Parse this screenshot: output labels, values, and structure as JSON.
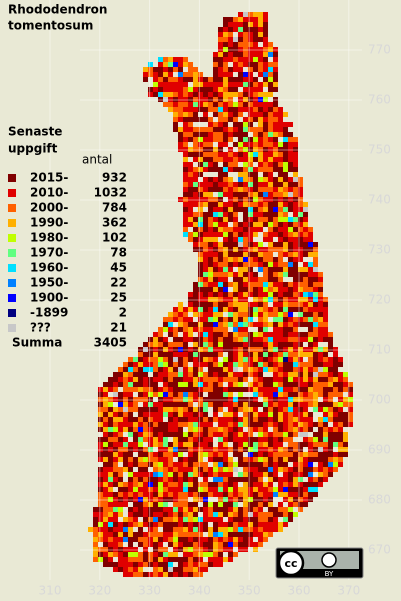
{
  "title": [
    "Rhododendron",
    "tomentosum"
  ],
  "legend": {
    "title": [
      "Senaste",
      "uppgift"
    ],
    "count_header": "antal",
    "items": [
      {
        "label": "2015-",
        "count": 932,
        "color": "#800000"
      },
      {
        "label": "2010-",
        "count": 1032,
        "color": "#e00000"
      },
      {
        "label": "2000-",
        "count": 784,
        "color": "#ff6000"
      },
      {
        "label": "1990-",
        "count": 362,
        "color": "#ffb000"
      },
      {
        "label": "1980-",
        "count": 102,
        "color": "#c0ff00"
      },
      {
        "label": "1970-",
        "count": 78,
        "color": "#60ff80"
      },
      {
        "label": "1960-",
        "count": 45,
        "color": "#00e0ff"
      },
      {
        "label": "1950-",
        "count": 22,
        "color": "#0080ff"
      },
      {
        "label": "1900-",
        "count": 25,
        "color": "#0000ff"
      },
      {
        "label": "-1899",
        "count": 2,
        "color": "#000080"
      },
      {
        "label": "???",
        "count": 21,
        "color": "#c8c8c8"
      }
    ],
    "total_label": "Summa",
    "total": 3405
  },
  "grid": {
    "x_labels": [
      310,
      320,
      330,
      340,
      350,
      360,
      370
    ],
    "y_labels": [
      670,
      680,
      690,
      700,
      710,
      720,
      730,
      740,
      750,
      760,
      770
    ]
  },
  "license": {
    "icon": "cc",
    "label": "BY"
  }
}
